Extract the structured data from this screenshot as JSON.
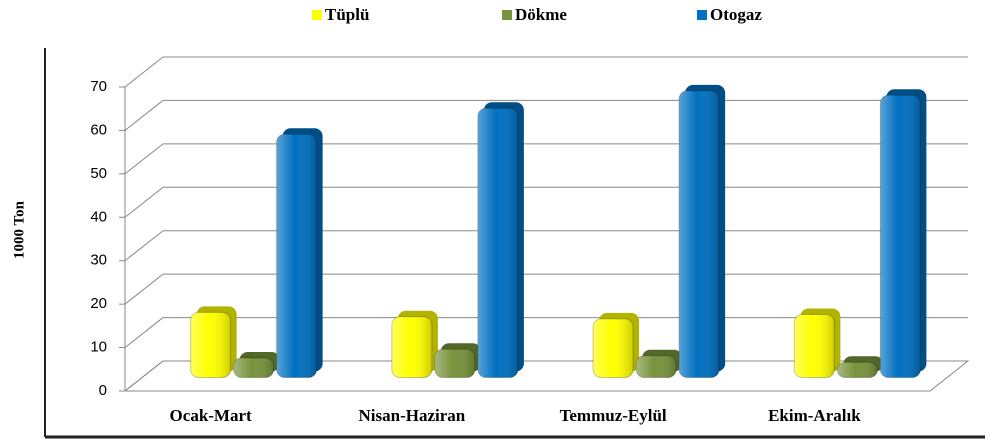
{
  "chart_data": {
    "type": "bar",
    "categories": [
      "Ocak-Mart",
      "Nisan-Haziran",
      "Temmuz-Eylül",
      "Ekim-Aralık"
    ],
    "series": [
      {
        "name": "Tüplü",
        "color": "#ffff00",
        "values": [
          15,
          14,
          13.5,
          14.5
        ]
      },
      {
        "name": "Dökme",
        "color": "#77933c",
        "values": [
          4.5,
          6.5,
          5,
          3.5
        ]
      },
      {
        "name": "Otogaz",
        "color": "#0070c0",
        "values": [
          56,
          62,
          66,
          65
        ]
      }
    ],
    "y_label": "1000 Ton",
    "ylim": [
      0,
      70
    ],
    "yticks": [
      0,
      10,
      20,
      30,
      40,
      50,
      60,
      70
    ],
    "grid": true,
    "legend": "top"
  }
}
